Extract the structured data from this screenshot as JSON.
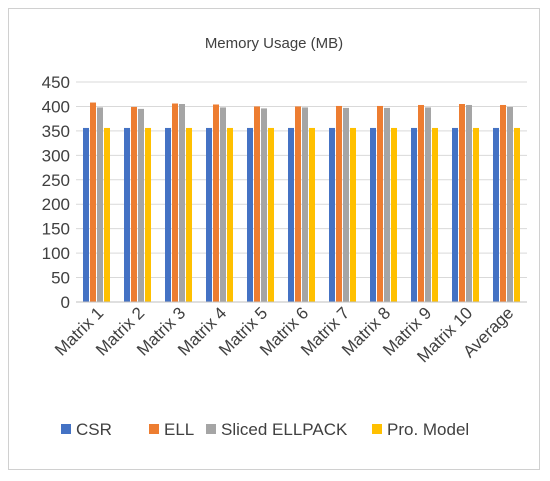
{
  "chart_data": {
    "type": "bar",
    "title": "Memory Usage (MB)",
    "xlabel": "",
    "ylabel": "",
    "ylim": [
      0,
      450
    ],
    "yticks": [
      0,
      50,
      100,
      150,
      200,
      250,
      300,
      350,
      400,
      450
    ],
    "grid": true,
    "legend_position": "bottom",
    "categories": [
      "Matrix 1",
      "Matrix 2",
      "Matrix 3",
      "Matrix 4",
      "Matrix 5",
      "Matrix 6",
      "Matrix 7",
      "Matrix 8",
      "Matrix 9",
      "Matrix 10",
      "Average"
    ],
    "series": [
      {
        "name": "CSR",
        "color": "#4472c4",
        "values": [
          356,
          356,
          356,
          356,
          356,
          356,
          356,
          356,
          356,
          356,
          356
        ]
      },
      {
        "name": "ELL",
        "color": "#ed7d31",
        "values": [
          408,
          399,
          406,
          404,
          400,
          400,
          401,
          401,
          403,
          405,
          403
        ]
      },
      {
        "name": "Sliced ELLPACK",
        "color": "#a5a5a5",
        "values": [
          398,
          395,
          405,
          398,
          396,
          398,
          397,
          397,
          398,
          403,
          399
        ]
      },
      {
        "name": "Pro. Model",
        "color": "#ffc000",
        "values": [
          356,
          356,
          356,
          356,
          356,
          356,
          356,
          356,
          356,
          356,
          356
        ]
      }
    ]
  }
}
